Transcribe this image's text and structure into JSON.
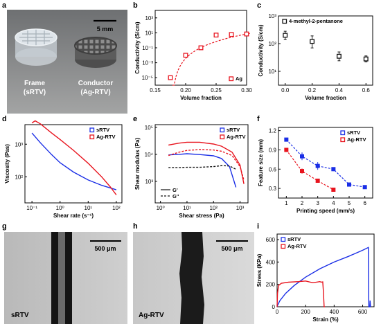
{
  "panel_labels": [
    "a",
    "b",
    "c",
    "d",
    "e",
    "f",
    "g",
    "h",
    "i"
  ],
  "photo_a": {
    "scale_text": "5 mm",
    "left_caption": [
      "Frame",
      "(sRTV)"
    ],
    "right_caption": [
      "Conductor",
      "(Ag-RTV)"
    ]
  },
  "micro_g": {
    "scale_text": "500 μm",
    "caption": "sRTV"
  },
  "micro_h": {
    "scale_text": "500 μm",
    "caption": "Ag-RTV"
  },
  "colors": {
    "red": "#e8141e",
    "blue": "#1a2ee6",
    "black": "#111111"
  },
  "chart_data": [
    {
      "id": "b",
      "type": "scatter",
      "xlabel": "Volume fraction",
      "ylabel": "Conductivity (S/cm)",
      "xlim": [
        0.15,
        0.3
      ],
      "ylim_log10": [
        -6,
        4
      ],
      "yscale": "log",
      "xticks": [
        "0.15",
        "0.20",
        "0.25",
        "0.30"
      ],
      "yticks": [
        "10⁻⁵",
        "10⁻³",
        "10⁻¹",
        "10¹",
        "10³"
      ],
      "series": [
        {
          "name": "Ag",
          "color": "#e8141e",
          "marker": "square-open",
          "x": [
            0.175,
            0.2,
            0.225,
            0.25,
            0.275,
            0.3
          ],
          "y": [
            1e-05,
            0.01,
            0.1,
            5,
            6,
            7
          ]
        }
      ],
      "fit": {
        "style": "dashed",
        "color": "#e8141e",
        "x0": 0.178
      },
      "legend": "bottom-right"
    },
    {
      "id": "c",
      "type": "scatter",
      "xlabel": "Volume fraction",
      "ylabel": "Conductivity (S/cm)",
      "xlim": [
        -0.05,
        0.65
      ],
      "ylim_log10": [
        0.5,
        3
      ],
      "yscale": "log",
      "xticks": [
        "0.0",
        "0.2",
        "0.4",
        "0.6"
      ],
      "yticks": [
        "10¹",
        "10²",
        "10³"
      ],
      "series": [
        {
          "name": "4-methyl-2-pentanone",
          "color": "#111111",
          "marker": "square-open",
          "x": [
            0.0,
            0.2,
            0.4,
            0.6
          ],
          "y": [
            200,
            120,
            35,
            28
          ],
          "err_lo": [
            140,
            70,
            24,
            22
          ],
          "err_hi": [
            280,
            190,
            50,
            36
          ]
        }
      ],
      "legend": "top-left"
    },
    {
      "id": "d",
      "type": "line",
      "xlabel": "Shear rate (s⁻¹)",
      "ylabel": "Viscosity (Pas)",
      "xlim_log10": [
        -1.25,
        2.2
      ],
      "ylim_log10": [
        1.2,
        3.6
      ],
      "xscale": "log",
      "yscale": "log",
      "xticks": [
        "10⁻¹",
        "10⁰",
        "10¹",
        "10²"
      ],
      "yticks": [
        "10²",
        "10³"
      ],
      "series": [
        {
          "name": "sRTV",
          "color": "#1a2ee6",
          "x": [
            0.1,
            0.2,
            0.5,
            1,
            3,
            10,
            30,
            100
          ],
          "y": [
            2200,
            1100,
            480,
            270,
            140,
            80,
            55,
            40
          ]
        },
        {
          "name": "Ag-RTV",
          "color": "#e8141e",
          "x": [
            0.1,
            0.13,
            0.2,
            0.5,
            1,
            3,
            10,
            30,
            60,
            100
          ],
          "y": [
            4500,
            5200,
            4200,
            2200,
            1400,
            650,
            260,
            100,
            50,
            28
          ]
        }
      ],
      "legend": "top-right"
    },
    {
      "id": "e",
      "type": "line",
      "xlabel": "Shear stress (Pa)",
      "ylabel": "Shear modulus (Pa)",
      "xlim_log10": [
        -0.2,
        3.3
      ],
      "ylim_log10": [
        2.2,
        5.1
      ],
      "xscale": "log",
      "yscale": "log",
      "xticks": [
        "10⁰",
        "10¹",
        "10²",
        "10³"
      ],
      "yticks": [
        "10³",
        "10⁴",
        "10⁵"
      ],
      "line_styles": [
        {
          "label": "G'",
          "dash": "solid"
        },
        {
          "label": "G''",
          "dash": "dashed"
        }
      ],
      "series": [
        {
          "name": "sRTV",
          "modulus": "G'",
          "color": "#1a2ee6",
          "x": [
            2,
            5,
            10,
            30,
            100,
            200,
            400,
            700
          ],
          "y": [
            9500,
            10000,
            10500,
            9800,
            8800,
            7000,
            3500,
            600
          ]
        },
        {
          "name": "sRTV",
          "modulus": "G''",
          "color": "#111111",
          "x": [
            2,
            5,
            10,
            30,
            100,
            200,
            400,
            700
          ],
          "y": [
            3200,
            3200,
            3300,
            3300,
            3500,
            3800,
            3700,
            2800
          ]
        },
        {
          "name": "Ag-RTV",
          "modulus": "G'",
          "color": "#e8141e",
          "x": [
            2,
            5,
            10,
            30,
            100,
            200,
            500,
            1000,
            1400
          ],
          "y": [
            22000,
            26000,
            28000,
            28000,
            24000,
            20000,
            12000,
            4000,
            800
          ]
        },
        {
          "name": "Ag-RTV",
          "modulus": "G''",
          "color": "#e8141e",
          "x": [
            2,
            5,
            10,
            30,
            100,
            200,
            500,
            1000,
            1400
          ],
          "y": [
            9000,
            12000,
            14000,
            15000,
            14500,
            13000,
            9000,
            3500,
            1100
          ]
        }
      ],
      "legend": "top-right"
    },
    {
      "id": "f",
      "type": "scatter",
      "xlabel": "Printing speed (mm/s)",
      "ylabel": "Feature size (mm)",
      "xlim": [
        0.5,
        6.5
      ],
      "ylim": [
        0.15,
        1.25
      ],
      "xticks": [
        "1",
        "2",
        "3",
        "4",
        "5",
        "6"
      ],
      "yticks": [
        "0.3",
        "0.6",
        "0.9",
        "1.2"
      ],
      "series": [
        {
          "name": "sRTV",
          "color": "#1a2ee6",
          "x": [
            1,
            2,
            3,
            4,
            5,
            6
          ],
          "y": [
            1.06,
            0.8,
            0.65,
            0.6,
            0.36,
            0.32
          ],
          "err": [
            0.02,
            0.06,
            0.06,
            0.03,
            0.02,
            0.02
          ]
        },
        {
          "name": "Ag-RTV",
          "color": "#e8141e",
          "x": [
            1,
            2,
            3,
            4
          ],
          "y": [
            0.9,
            0.57,
            0.42,
            0.28
          ],
          "err": [
            0.03,
            0.04,
            0.02,
            0.02
          ]
        }
      ],
      "legend": "top-right"
    },
    {
      "id": "i",
      "type": "line",
      "xlabel": "Strain (%)",
      "ylabel": "Stress (KPa)",
      "xlim": [
        0,
        680
      ],
      "ylim": [
        0,
        650
      ],
      "xticks": [
        "0",
        "200",
        "400",
        "600"
      ],
      "yticks": [
        "0",
        "200",
        "400",
        "600"
      ],
      "series": [
        {
          "name": "sRTV",
          "color": "#1a2ee6",
          "x": [
            0,
            2,
            20,
            60,
            120,
            200,
            300,
            400,
            500,
            600,
            640,
            643,
            650,
            652,
            655
          ],
          "y": [
            0,
            10,
            55,
            120,
            190,
            265,
            340,
            400,
            450,
            505,
            530,
            0,
            0,
            55,
            0
          ]
        },
        {
          "name": "Ag-RTV",
          "color": "#e8141e",
          "x": [
            0,
            3,
            10,
            30,
            80,
            150,
            200,
            250,
            300,
            310,
            320,
            325,
            330,
            335
          ],
          "y": [
            0,
            120,
            190,
            210,
            220,
            225,
            230,
            215,
            225,
            220,
            222,
            130,
            0,
            0
          ]
        }
      ],
      "legend": "top-left"
    }
  ]
}
